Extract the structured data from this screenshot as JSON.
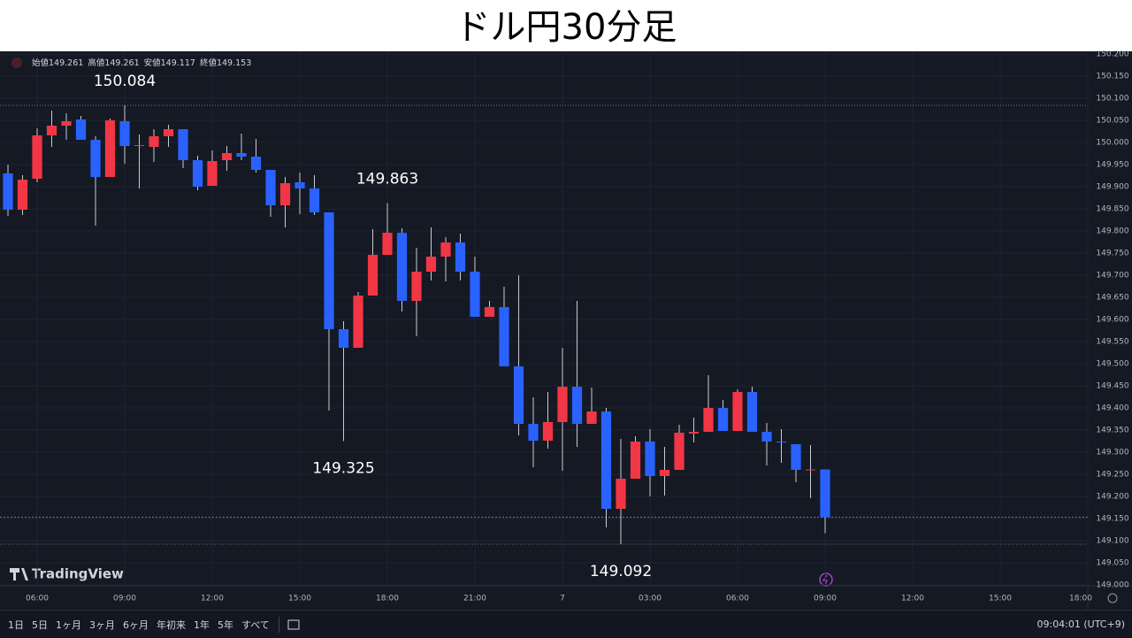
{
  "page_title": "ドル円30分足",
  "chart_data": {
    "type": "candlestick",
    "ohlc_legend": [
      {
        "label": "始値",
        "value": 149.261
      },
      {
        "label": "高値",
        "value": 149.261
      },
      {
        "label": "安値",
        "value": 149.117
      },
      {
        "label": "終値",
        "value": 149.153
      }
    ],
    "x": [
      5,
      5.5,
      6,
      6.5,
      7,
      7.5,
      8,
      8.5,
      9,
      9.5,
      10,
      10.5,
      11,
      11.5,
      12,
      12.5,
      13,
      13.5,
      14,
      14.5,
      15,
      15.5,
      16,
      16.5,
      17,
      17.5,
      18,
      18.5,
      19,
      19.5,
      20,
      20.5,
      21,
      21.5,
      22,
      22.5,
      23,
      23.5,
      24,
      24.5,
      25,
      25.5,
      26,
      26.5,
      27,
      27.5,
      28,
      28.5,
      29,
      29.5,
      30,
      30.5,
      31,
      31.5,
      32,
      32.5,
      33
    ],
    "open": [
      149.93,
      149.848,
      149.918,
      150.016,
      150.038,
      150.052,
      150.006,
      149.922,
      150.048,
      149.992,
      149.99,
      150.014,
      150.03,
      149.96,
      149.902,
      149.96,
      149.976,
      149.968,
      149.938,
      149.858,
      149.91,
      149.896,
      149.842,
      149.578,
      149.536,
      149.654,
      149.746,
      149.796,
      149.642,
      149.708,
      149.742,
      149.774,
      149.708,
      149.606,
      149.628,
      149.494,
      149.364,
      149.326,
      149.368,
      149.448,
      149.364,
      149.392,
      149.172,
      149.24,
      149.324,
      149.246,
      149.26,
      149.342,
      149.346,
      149.4,
      149.348,
      149.436,
      149.346,
      149.324,
      149.318,
      149.26,
      149.261
    ],
    "high": [
      149.95,
      149.926,
      150.032,
      150.072,
      150.066,
      150.06,
      150.014,
      150.054,
      150.084,
      150.018,
      150.03,
      150.04,
      150.03,
      149.97,
      149.982,
      149.992,
      150.02,
      150.008,
      149.938,
      149.922,
      149.932,
      149.926,
      149.842,
      149.596,
      149.662,
      149.804,
      149.863,
      149.806,
      149.762,
      149.808,
      149.786,
      149.794,
      149.742,
      149.642,
      149.674,
      149.7,
      149.424,
      149.436,
      149.536,
      149.642,
      149.446,
      149.4,
      149.33,
      149.336,
      149.352,
      149.312,
      149.362,
      149.378,
      149.474,
      149.418,
      149.442,
      149.448,
      149.366,
      149.352,
      149.318,
      149.316,
      149.261
    ],
    "low": [
      149.834,
      149.836,
      149.91,
      149.99,
      150.006,
      150.006,
      149.812,
      149.922,
      149.952,
      149.896,
      149.956,
      149.99,
      149.942,
      149.892,
      149.902,
      149.936,
      149.96,
      149.932,
      149.832,
      149.808,
      149.838,
      149.836,
      149.394,
      149.325,
      149.536,
      149.654,
      149.746,
      149.618,
      149.562,
      149.688,
      149.686,
      149.688,
      149.606,
      149.606,
      149.494,
      149.338,
      149.266,
      149.308,
      149.258,
      149.312,
      149.364,
      149.13,
      149.092,
      149.24,
      149.2,
      149.202,
      149.26,
      149.322,
      149.346,
      149.348,
      149.348,
      149.346,
      149.27,
      149.276,
      149.232,
      149.196,
      149.117
    ],
    "close": [
      149.848,
      149.916,
      150.016,
      150.038,
      150.048,
      150.006,
      149.922,
      150.05,
      149.992,
      149.994,
      150.014,
      150.03,
      149.96,
      149.9,
      149.958,
      149.976,
      149.968,
      149.938,
      149.858,
      149.908,
      149.896,
      149.842,
      149.578,
      149.536,
      149.654,
      149.746,
      149.796,
      149.642,
      149.708,
      149.742,
      149.774,
      149.708,
      149.606,
      149.628,
      149.494,
      149.364,
      149.326,
      149.368,
      149.448,
      149.364,
      149.392,
      149.172,
      149.24,
      149.324,
      149.246,
      149.26,
      149.344,
      149.346,
      149.4,
      149.348,
      149.436,
      149.346,
      149.324,
      149.322,
      149.26,
      149.261,
      149.153
    ],
    "up_color": "#f23645",
    "down_color": "#2962ff",
    "wick_color": "#c8cbd3",
    "xlim": [
      4.727,
      42
    ],
    "ylim": [
      148.998,
      150.206
    ],
    "xticks": [
      {
        "value": 6,
        "label": "06:00"
      },
      {
        "value": 9,
        "label": "09:00"
      },
      {
        "value": 12,
        "label": "12:00"
      },
      {
        "value": 15,
        "label": "15:00"
      },
      {
        "value": 18,
        "label": "18:00"
      },
      {
        "value": 21,
        "label": "21:00"
      },
      {
        "value": 24,
        "label": "7"
      },
      {
        "value": 27,
        "label": "03:00"
      },
      {
        "value": 30,
        "label": "06:00"
      },
      {
        "value": 33,
        "label": "09:00"
      },
      {
        "value": 36,
        "label": "12:00"
      },
      {
        "value": 39,
        "label": "15:00"
      },
      {
        "value": 42,
        "label": "18:00"
      }
    ],
    "yticks": [
      {
        "value": 149,
        "label": "149.000"
      },
      {
        "value": 149.05,
        "label": "149.050"
      },
      {
        "value": 149.1,
        "label": "149.100"
      },
      {
        "value": 149.15,
        "label": "149.150"
      },
      {
        "value": 149.2,
        "label": "149.200"
      },
      {
        "value": 149.25,
        "label": "149.250"
      },
      {
        "value": 149.3,
        "label": "149.300"
      },
      {
        "value": 149.35,
        "label": "149.350"
      },
      {
        "value": 149.4,
        "label": "149.400"
      },
      {
        "value": 149.45,
        "label": "149.450"
      },
      {
        "value": 149.5,
        "label": "149.500"
      },
      {
        "value": 149.55,
        "label": "149.550"
      },
      {
        "value": 149.6,
        "label": "149.600"
      },
      {
        "value": 149.65,
        "label": "149.650"
      },
      {
        "value": 149.7,
        "label": "149.700"
      },
      {
        "value": 149.75,
        "label": "149.750"
      },
      {
        "value": 149.8,
        "label": "149.800"
      },
      {
        "value": 149.85,
        "label": "149.850"
      },
      {
        "value": 149.9,
        "label": "149.900"
      },
      {
        "value": 149.95,
        "label": "149.950"
      },
      {
        "value": 150,
        "label": "150.000"
      },
      {
        "value": 150.05,
        "label": "150.050"
      },
      {
        "value": 150.1,
        "label": "150.100"
      },
      {
        "value": 150.15,
        "label": "150.150"
      },
      {
        "value": 150.2,
        "label": "150.200"
      }
    ],
    "grid": true,
    "annotations": [
      {
        "value": 150.084,
        "position": "above"
      },
      {
        "value": 149.863,
        "position": "above"
      },
      {
        "value": 149.325,
        "position": "below"
      },
      {
        "value": 149.092,
        "position": "below"
      }
    ],
    "hlines": [
      150.084,
      149.092
    ],
    "last_price": 149.153,
    "last_price_color": "#5b6cf0"
  },
  "brand": "TradingView",
  "toolbar": {
    "ranges": [
      "1日",
      "5日",
      "1ヶ月",
      "3ヶ月",
      "6ヶ月",
      "年初来",
      "1年",
      "5年",
      "すべて"
    ],
    "clock": "09:04:01 (UTC+9)"
  }
}
